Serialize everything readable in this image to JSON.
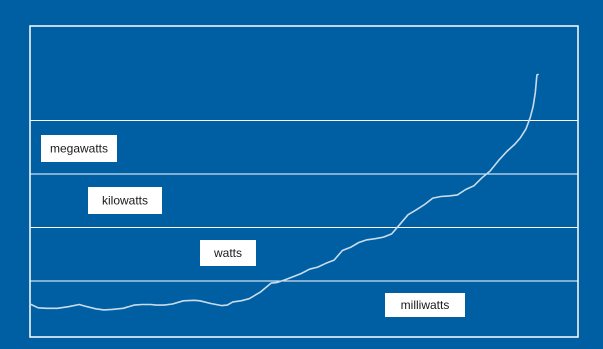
{
  "colors": {
    "panel_background": "#005fa3",
    "frame_line": "#ffffff",
    "divider_line": "#ffffff",
    "curve_line": "#c9dcec",
    "label_box": "#ffffff",
    "label_text": "#1a1a1a"
  },
  "chart_data": {
    "type": "line",
    "title": "",
    "xlabel": "",
    "ylabel": "",
    "scale": "log-bands",
    "grid": true,
    "bands": [
      {
        "label": "milliwatts",
        "level": 0
      },
      {
        "label": "watts",
        "level": 1
      },
      {
        "label": "kilowatts",
        "level": 2
      },
      {
        "label": "megawatts",
        "level": 3
      }
    ],
    "ylim": [
      -0.6,
      4.0
    ],
    "xlim": [
      0,
      100
    ],
    "series": [
      {
        "x": [
          0,
          1.5,
          3,
          5,
          7,
          9,
          10,
          12,
          13.5,
          15,
          17,
          19,
          20.5,
          22,
          23,
          24.5,
          26,
          28,
          30,
          31,
          33,
          35,
          36,
          37,
          38.5,
          40,
          42,
          44,
          45,
          46.5,
          48,
          49.5,
          51,
          52.5,
          54,
          55.5,
          57,
          58.5,
          60,
          61.5,
          63,
          64.5,
          66,
          67.5,
          69,
          70.5,
          72,
          73.5,
          75,
          76.5,
          78,
          79.5,
          81,
          82.5,
          84,
          85.5,
          87,
          88.5,
          89.5,
          90.5,
          91.3,
          91.8,
          92.2,
          92.5,
          92.7
        ],
        "y": [
          -0.43,
          -0.5,
          -0.51,
          -0.51,
          -0.48,
          -0.44,
          -0.47,
          -0.52,
          -0.54,
          -0.53,
          -0.51,
          -0.45,
          -0.44,
          -0.44,
          -0.45,
          -0.45,
          -0.43,
          -0.37,
          -0.36,
          -0.37,
          -0.42,
          -0.46,
          -0.45,
          -0.39,
          -0.37,
          -0.33,
          -0.21,
          -0.04,
          -0.03,
          0.02,
          0.08,
          0.14,
          0.22,
          0.26,
          0.33,
          0.39,
          0.57,
          0.63,
          0.72,
          0.77,
          0.79,
          0.82,
          0.88,
          1.06,
          1.24,
          1.33,
          1.43,
          1.55,
          1.58,
          1.59,
          1.61,
          1.71,
          1.78,
          1.93,
          2.06,
          2.25,
          2.42,
          2.56,
          2.68,
          2.84,
          3.06,
          3.26,
          3.52,
          3.85,
          3.86
        ]
      }
    ]
  }
}
